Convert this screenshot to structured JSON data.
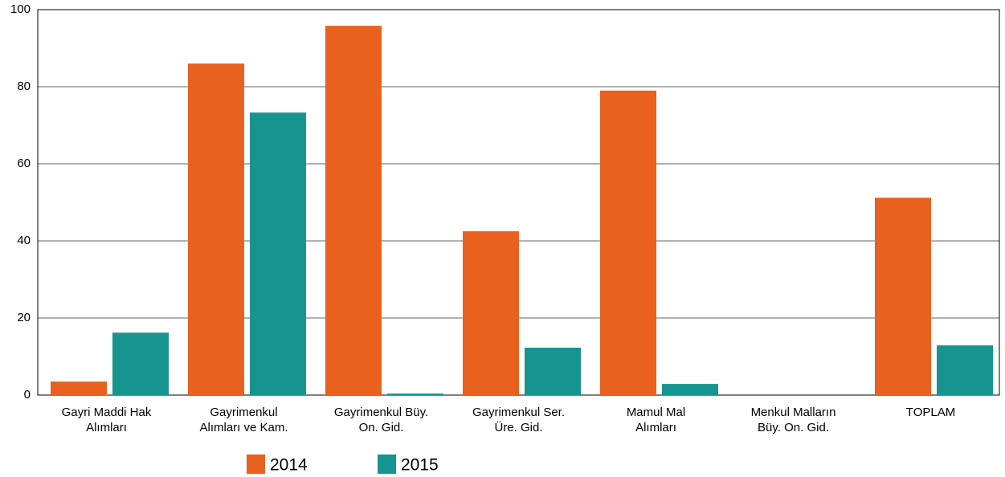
{
  "chart_data": {
    "type": "bar",
    "categories": [
      [
        "Gayri Maddi Hak",
        "Alımları"
      ],
      [
        "Gayrimenkul",
        "Alımları ve Kam."
      ],
      [
        "Gayrimenkul Büy.",
        "On. Gid."
      ],
      [
        "Gayrimenkul Ser.",
        "Üre. Gid."
      ],
      [
        "Mamul Mal",
        "Alımları"
      ],
      [
        "Menkul Malların",
        "Büy. On. Gid."
      ],
      [
        "TOPLAM"
      ]
    ],
    "series": [
      {
        "name": "2014",
        "color": "#e8611f",
        "values": [
          3.5,
          86.0,
          95.8,
          42.5,
          79.0,
          0,
          51.2
        ]
      },
      {
        "name": "2015",
        "color": "#169590",
        "values": [
          16.2,
          73.3,
          0.4,
          12.3,
          2.9,
          0,
          12.9
        ]
      }
    ],
    "ylim": [
      0,
      100
    ],
    "yticks": [
      0,
      20,
      40,
      60,
      80,
      100
    ],
    "grid": true,
    "legend": "bottom"
  }
}
